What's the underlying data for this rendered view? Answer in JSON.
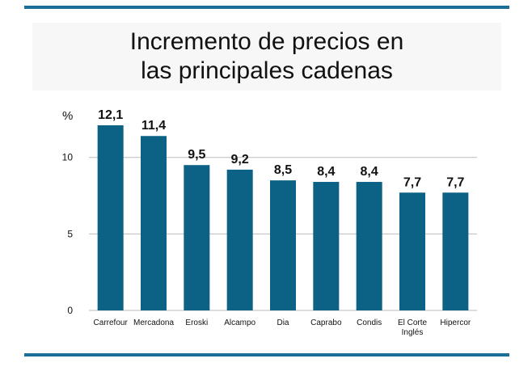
{
  "colors": {
    "bar": "#0b6285",
    "rule": "#1a6f96",
    "grid": "#bbbbbb",
    "text": "#111111"
  },
  "chart_data": {
    "type": "bar",
    "title_lines": [
      "Incremento de precios en",
      "las principales cadenas"
    ],
    "ylabel": "%",
    "ylim": [
      0,
      12.1
    ],
    "yticks": [
      0,
      5,
      10
    ],
    "ytick_labels": [
      "0",
      "5",
      "10"
    ],
    "grid": true,
    "categories": [
      [
        "Carrefour"
      ],
      [
        "Mercadona"
      ],
      [
        "Eroski"
      ],
      [
        "Alcampo"
      ],
      [
        "Dia"
      ],
      [
        "Caprabo"
      ],
      [
        "Condis"
      ],
      [
        "El Corte",
        "Inglés"
      ],
      [
        "Hipercor"
      ]
    ],
    "values": [
      12.1,
      11.4,
      9.5,
      9.2,
      8.5,
      8.4,
      8.4,
      7.7,
      7.7
    ],
    "value_labels": [
      "12,1",
      "11,4",
      "9,5",
      "9,2",
      "8,5",
      "8,4",
      "8,4",
      "7,7",
      "7,7"
    ]
  }
}
